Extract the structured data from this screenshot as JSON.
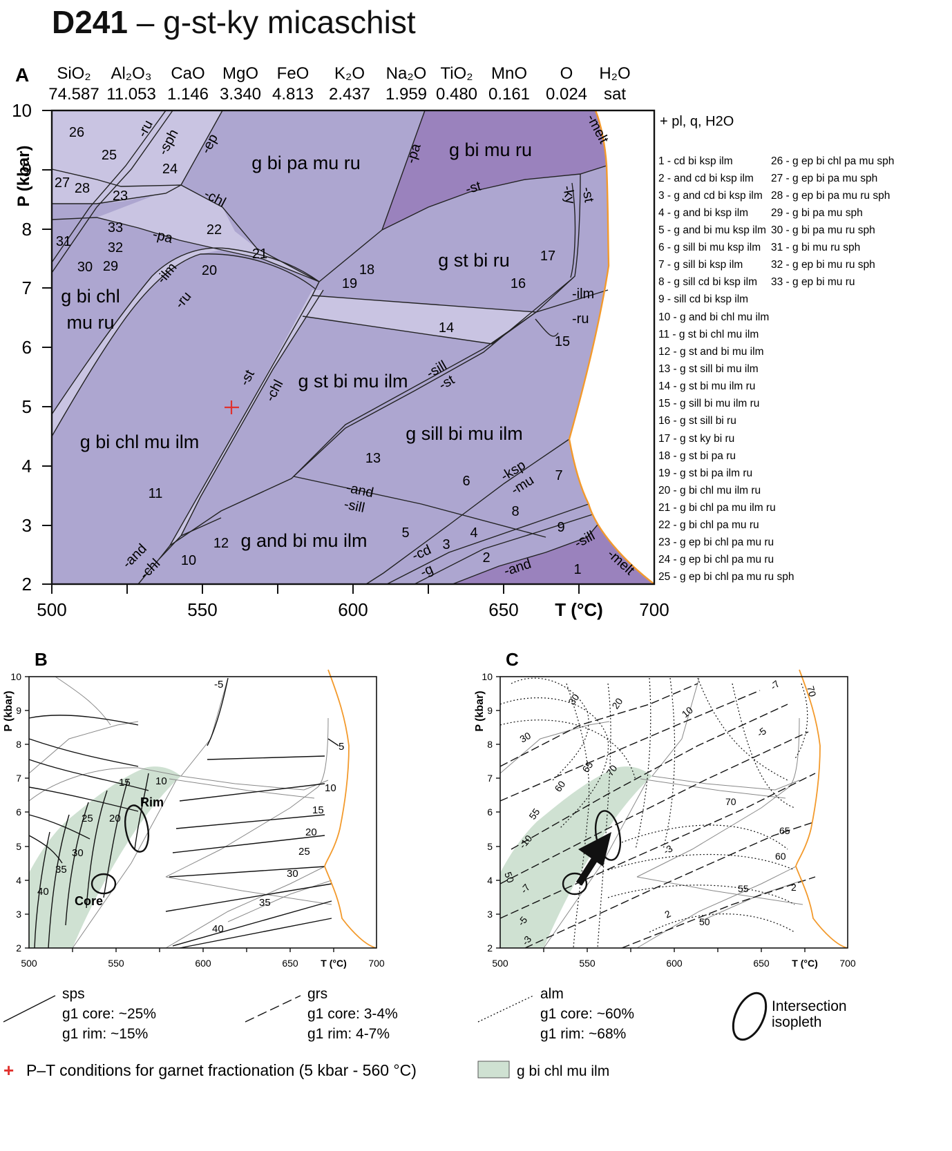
{
  "title": {
    "id": "D241",
    "dash": "–",
    "name": "g-st-ky micaschist"
  },
  "panel_labels": {
    "a": "A",
    "b": "B",
    "c": "C"
  },
  "composition": [
    {
      "oxide": "SiO₂",
      "value": "74.587"
    },
    {
      "oxide": "Al₂O₃",
      "value": "11.053"
    },
    {
      "oxide": "CaO",
      "value": "1.146"
    },
    {
      "oxide": "MgO",
      "value": "3.340"
    },
    {
      "oxide": "FeO",
      "value": "4.813"
    },
    {
      "oxide": "K₂O",
      "value": "2.437"
    },
    {
      "oxide": "Na₂O",
      "value": "1.959"
    },
    {
      "oxide": "TiO₂",
      "value": "0.480"
    },
    {
      "oxide": "MnO",
      "value": "0.161"
    },
    {
      "oxide": "O",
      "value": "0.024"
    },
    {
      "oxide": "H₂O",
      "value": "sat"
    }
  ],
  "axes": {
    "y_label": "P (kbar)",
    "x_label": "T (°C)",
    "y_ticks": [
      "2",
      "3",
      "4",
      "5",
      "6",
      "7",
      "8",
      "9",
      "10"
    ],
    "x_ticks": [
      "500",
      "550",
      "600",
      "650",
      "700"
    ]
  },
  "assemblage_note": "+ pl, q, H2O",
  "legend_col1": [
    "1 - cd bi ksp ilm",
    "2 - and cd bi ksp ilm",
    "3 - g and cd bi ksp ilm",
    "4 - g and bi ksp ilm",
    "5 - g and bi mu ksp ilm",
    "6 - g sill bi mu ksp ilm",
    "7 - g sill bi ksp ilm",
    "8 - g sill cd bi ksp ilm",
    "9 - sill cd bi ksp ilm",
    "10 - g and bi chl mu ilm",
    "11 - g st bi chl mu ilm",
    "12 - g st and bi mu ilm",
    "13 - g st sill bi mu ilm",
    "14 - g st bi mu ilm ru",
    "15 - g sill bi mu ilm ru",
    "16 - g st sill bi ru",
    "17 - g st ky bi ru",
    "18 - g st bi pa ru",
    "19 - g st bi pa ilm ru",
    "20 - g bi chl mu ilm ru",
    "21 - g bi chl pa mu ilm ru",
    "22 - g bi chl pa mu ru",
    "23 - g ep bi chl pa mu ru",
    "24 - g ep bi chl pa mu ru",
    "25 - g ep bi chl pa mu ru sph"
  ],
  "legend_col2": [
    "26 - g ep bi chl pa mu sph",
    "27 - g ep bi pa mu sph",
    "28 - g ep bi pa mu ru sph",
    "29 - g bi pa mu sph",
    "30 - g bi pa mu ru sph",
    "31 - g bi mu ru sph",
    "32 - g ep bi mu ru sph",
    "33 - g ep bi mu ru"
  ],
  "field_labels": {
    "g_bi_pa_mu_ru": "g bi pa mu ru",
    "g_bi_mu_ru": "g bi mu ru",
    "g_st_bi_ru": "g st bi ru",
    "g_bi_chl_mu_ru_1": "g bi chl",
    "g_bi_chl_mu_ru_2": "mu ru",
    "g_st_bi_mu_ilm": "g st bi mu ilm",
    "g_bi_chl_mu_ilm": "g bi chl mu ilm",
    "g_sill_bi_mu_ilm": "g sill bi mu ilm",
    "g_and_bi_mu_ilm": "g and bi mu ilm"
  },
  "reaction_labels": {
    "ru": "-ru",
    "sph": "-sph",
    "ep": "-ep",
    "chl": "-chl",
    "pa": "-pa",
    "ilm": "-ilm",
    "st": "-st",
    "sill": "-sill",
    "and": "-and",
    "ksp": "-ksp",
    "mu": "-mu",
    "cd": "-cd",
    "g": "-g",
    "melt": "-melt",
    "ky": "-ky"
  },
  "numbers": [
    "1",
    "2",
    "3",
    "4",
    "5",
    "6",
    "7",
    "8",
    "9",
    "10",
    "11",
    "12",
    "13",
    "14",
    "15",
    "16",
    "17",
    "18",
    "19",
    "20",
    "21",
    "22",
    "23",
    "24",
    "25",
    "26",
    "27",
    "28",
    "29",
    "30",
    "31",
    "32",
    "33"
  ],
  "b_isopleths": [
    "-5",
    "5",
    "10",
    "15",
    "20",
    "25",
    "30",
    "35",
    "40"
  ],
  "c_isopleths": [
    "30",
    "20",
    "10",
    "7",
    "5",
    "3",
    "2",
    "70",
    "65",
    "60",
    "55",
    "50"
  ],
  "c_grs_left": [
    "-10",
    "-7",
    "-5",
    "-3"
  ],
  "labels_b": {
    "rim": "Rim",
    "core": "Core"
  },
  "legend_bottom": {
    "sps": {
      "name": "sps",
      "core": "g1 core: ~25%",
      "rim": "g1 rim: ~15%"
    },
    "grs": {
      "name": "grs",
      "core": "g1 core: 3-4%",
      "rim": "g1 rim: 4-7%"
    },
    "alm": {
      "name": "alm",
      "core": "g1 core: ~60%",
      "rim": "g1 rim: ~68%"
    },
    "intersection": {
      "line1": "Intersection",
      "line2": "isopleth"
    },
    "pt_symbol": "+",
    "pt_text": "P–T conditions for garnet fractionation (5 kbar - 560 °C)",
    "field": "g bi chl mu ilm"
  },
  "colors": {
    "main_field": "#ada6d0",
    "light_field": "#c9c4e2",
    "dark_field": "#9a82bd",
    "melt_line": "#f39a2c",
    "green_field": "#cfe1d2",
    "cross": "#e0312d"
  }
}
